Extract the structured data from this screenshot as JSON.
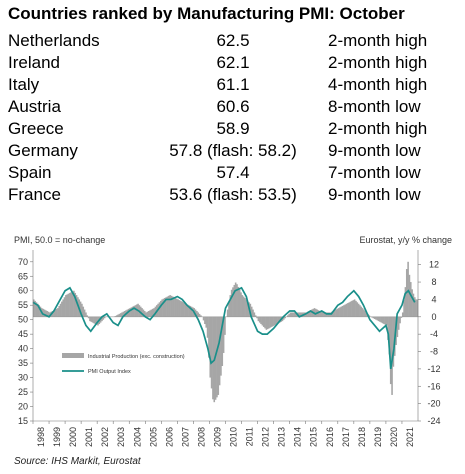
{
  "title": "Countries ranked by Manufacturing PMI: October",
  "ranking": [
    {
      "country": "Netherlands",
      "pmi": "62.5",
      "note": "2-month high"
    },
    {
      "country": "Ireland",
      "pmi": "62.1",
      "note": "2-month high"
    },
    {
      "country": "Italy",
      "pmi": "61.1",
      "note": "4-month high"
    },
    {
      "country": "Austria",
      "pmi": "60.6",
      "note": "8-month low"
    },
    {
      "country": "Greece",
      "pmi": "58.9",
      "note": "2-month high"
    },
    {
      "country": "Germany",
      "pmi": "57.8 (flash: 58.2)",
      "note": "9-month low"
    },
    {
      "country": "Spain",
      "pmi": "57.4",
      "note": "7-month low"
    },
    {
      "country": "France",
      "pmi": "53.6 (flash: 53.5)",
      "note": "9-month low"
    }
  ],
  "source": "Source: IHS Markit, Eurostat",
  "chart_data": {
    "type": "line",
    "left_axis_title": "PMI, 50.0 = no-change",
    "right_axis_title": "Eurostat, y/y % change",
    "x_ticks": [
      "1998",
      "1999",
      "2000",
      "2001",
      "2002",
      "2003",
      "2004",
      "2005",
      "2006",
      "2007",
      "2008",
      "2009",
      "2010",
      "2011",
      "2012",
      "2013",
      "2014",
      "2015",
      "2016",
      "2017",
      "2018",
      "2019",
      "2020",
      "2021"
    ],
    "ylim_left": [
      15,
      72
    ],
    "yticks_left": [
      15,
      20,
      25,
      30,
      35,
      40,
      45,
      50,
      55,
      60,
      65,
      70
    ],
    "ylim_right": [
      -24,
      14
    ],
    "yticks_right": [
      12,
      8,
      4,
      0,
      -4,
      -8,
      -12,
      -16,
      -20,
      -24
    ],
    "legend_position": "center-left",
    "grid": false,
    "series": [
      {
        "name": "Industrial Production (exc. construction)",
        "type": "bar",
        "axis": "right",
        "color": "#a6a6a6",
        "x": [
          1998.0,
          1998.5,
          1999.0,
          1999.5,
          2000.0,
          2000.5,
          2001.0,
          2001.5,
          2002.0,
          2002.5,
          2003.0,
          2003.5,
          2004.0,
          2004.5,
          2005.0,
          2005.5,
          2006.0,
          2006.5,
          2007.0,
          2007.5,
          2008.0,
          2008.5,
          2008.8,
          2009.0,
          2009.2,
          2009.5,
          2009.8,
          2010.0,
          2010.3,
          2010.6,
          2011.0,
          2011.5,
          2012.0,
          2012.5,
          2013.0,
          2013.5,
          2014.0,
          2014.5,
          2015.0,
          2015.5,
          2016.0,
          2016.5,
          2017.0,
          2017.5,
          2018.0,
          2018.5,
          2019.0,
          2019.5,
          2020.0,
          2020.2,
          2020.3,
          2020.4,
          2020.6,
          2020.8,
          2021.0,
          2021.2,
          2021.3,
          2021.4,
          2021.6,
          2021.8
        ],
        "values": [
          4,
          2,
          1,
          2,
          5,
          6,
          3,
          -1,
          -2,
          0,
          0,
          1,
          2,
          3,
          1,
          2,
          4,
          5,
          4,
          3,
          2,
          0,
          -3,
          -14,
          -20,
          -18,
          -10,
          0,
          6,
          8,
          5,
          3,
          -1,
          -3,
          -2,
          -1,
          1,
          1,
          1,
          2,
          1,
          1,
          2,
          3,
          4,
          2,
          0,
          -1,
          -2,
          -10,
          -21,
          -12,
          -6,
          -2,
          1,
          8,
          14,
          10,
          6,
          4
        ]
      },
      {
        "name": "PMI Output Index",
        "type": "line",
        "axis": "left",
        "color": "#1a8f8a",
        "x": [
          1998.0,
          1998.3,
          1998.6,
          1999.0,
          1999.3,
          1999.6,
          2000.0,
          2000.3,
          2000.6,
          2001.0,
          2001.3,
          2001.6,
          2002.0,
          2002.3,
          2002.6,
          2003.0,
          2003.3,
          2003.6,
          2004.0,
          2004.3,
          2004.6,
          2005.0,
          2005.3,
          2005.6,
          2006.0,
          2006.3,
          2006.6,
          2007.0,
          2007.3,
          2007.6,
          2008.0,
          2008.3,
          2008.6,
          2008.9,
          2009.1,
          2009.3,
          2009.6,
          2010.0,
          2010.3,
          2010.6,
          2011.0,
          2011.3,
          2011.6,
          2012.0,
          2012.3,
          2012.6,
          2013.0,
          2013.3,
          2013.6,
          2014.0,
          2014.3,
          2014.6,
          2015.0,
          2015.3,
          2015.6,
          2016.0,
          2016.3,
          2016.6,
          2017.0,
          2017.3,
          2017.6,
          2018.0,
          2018.3,
          2018.6,
          2019.0,
          2019.3,
          2019.6,
          2020.0,
          2020.15,
          2020.3,
          2020.5,
          2020.7,
          2021.0,
          2021.2,
          2021.4,
          2021.6,
          2021.8
        ],
        "values": [
          56,
          55,
          52,
          51,
          53,
          56,
          60,
          61,
          58,
          52,
          48,
          46,
          49,
          51,
          52,
          49,
          48,
          51,
          53,
          54,
          53,
          51,
          50,
          52,
          55,
          57,
          57,
          58,
          57,
          55,
          53,
          50,
          46,
          40,
          35,
          36,
          42,
          54,
          57,
          60,
          61,
          58,
          51,
          46,
          45,
          45,
          47,
          49,
          51,
          53,
          53,
          51,
          52,
          53,
          52,
          53,
          52,
          52,
          55,
          56,
          58,
          60,
          58,
          55,
          50,
          48,
          46,
          48,
          45,
          33,
          40,
          52,
          55,
          59,
          60,
          58,
          56
        ]
      }
    ]
  }
}
